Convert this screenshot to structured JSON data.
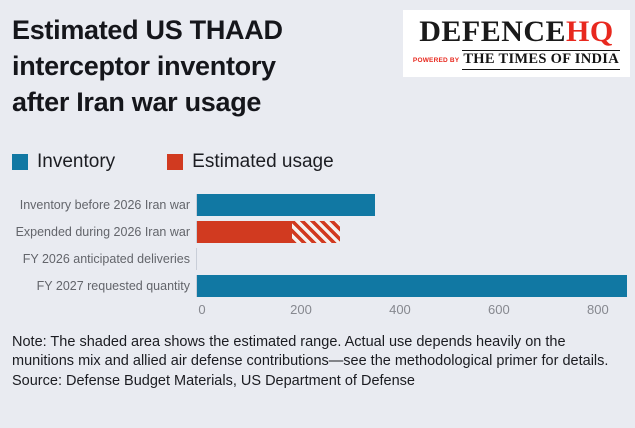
{
  "page": {
    "background": "#e9ebf1"
  },
  "header": {
    "title_lines": [
      "Estimated US THAAD",
      "interceptor inventory",
      "after Iran war usage"
    ]
  },
  "logo": {
    "brand_primary": "DEFENCE",
    "brand_accent": "HQ",
    "brand_accent_color": "#e8281e",
    "powered_by": "Powered By",
    "newspaper": "THE TIMES OF INDIA"
  },
  "legend": {
    "items": [
      {
        "label": "Inventory",
        "color": "#1178a3"
      },
      {
        "label": "Estimated usage",
        "color": "#d13a20"
      }
    ]
  },
  "chart_data": {
    "type": "bar",
    "orientation": "horizontal",
    "title": "Estimated US THAAD interceptor inventory after Iran war usage",
    "categories": [
      "Inventory before 2026 Iran war",
      "Expended during 2026 Iran war",
      "FY 2026 anticipated deliveries",
      "FY 2027 requested quantity"
    ],
    "series": [
      {
        "name": "Inventory",
        "color": "#1178a3",
        "values": [
          355,
          0,
          0,
          860
        ]
      },
      {
        "name": "Estimated usage",
        "color": "#d13a20",
        "values": [
          0,
          190,
          0,
          0
        ]
      },
      {
        "name": "Estimated usage range (shaded)",
        "color": "#d13a20",
        "pattern": "hatch",
        "values": [
          0,
          95,
          0,
          0
        ]
      }
    ],
    "estimated_usage_range": [
      190,
      285
    ],
    "xticks": [
      0,
      200,
      400,
      600,
      800
    ],
    "xlim": [
      0,
      875
    ],
    "grid": false,
    "legend_position": "top"
  },
  "footer": {
    "note": "Note: The shaded area shows the estimated range. Actual use depends heavily on the munitions mix and allied air defense contributions—see the methodological primer for details.",
    "source": "Source: Defense Budget Materials, US Department of Defense"
  }
}
